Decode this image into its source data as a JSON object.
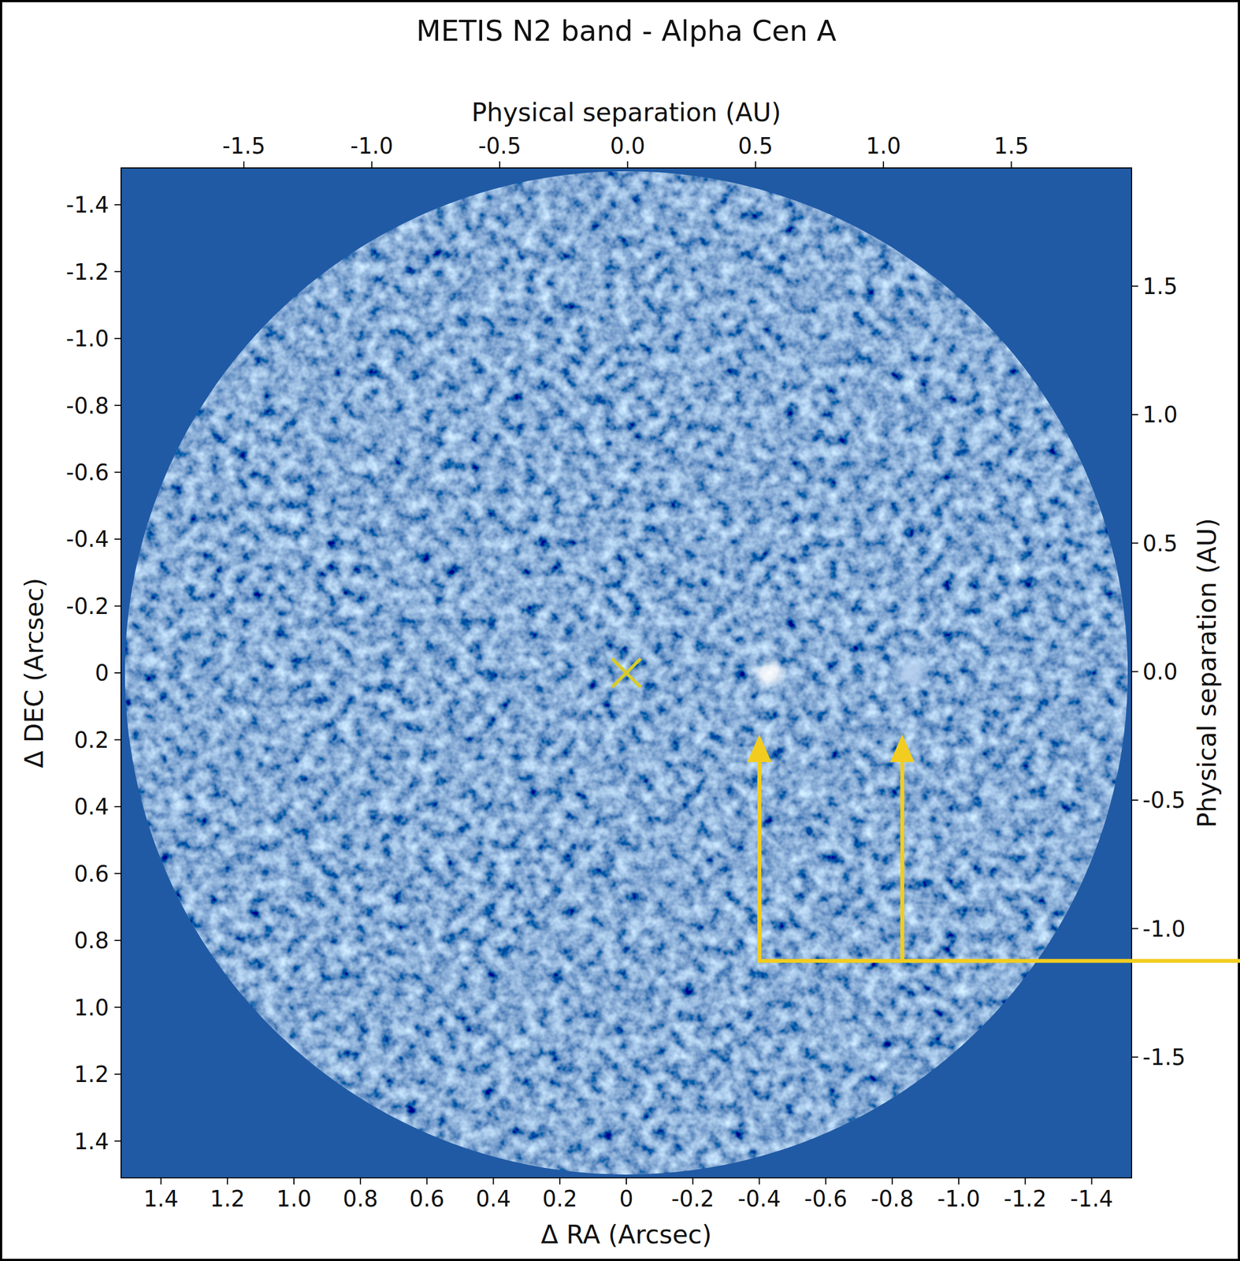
{
  "chart_data": {
    "type": "scatter",
    "title": "METIS N2 band - Alpha Cen A",
    "x_label": "Δ RA (Arcsec)",
    "y_label": "Δ DEC (Arcsec)",
    "x2_label": "Physical separation (AU)",
    "y2_label": "Physical separation (AU)",
    "xlim": [
      1.52,
      -1.52
    ],
    "xticks": [
      1.4,
      1.2,
      {
        "value": 1,
        "label": "1.0"
      },
      0.8,
      0.6,
      0.4,
      0.2,
      0,
      -0.2,
      -0.4,
      -0.6,
      -0.8,
      {
        "value": -1,
        "label": "-1.0"
      },
      -1.2,
      -1.4
    ],
    "ylim": [
      1.51,
      -1.51
    ],
    "yticks": [
      -1.4,
      -1.2,
      {
        "value": -1,
        "label": "-1.0"
      },
      -0.8,
      -0.6,
      -0.4,
      -0.2,
      0,
      0.2,
      0.4,
      0.6,
      0.8,
      {
        "value": 1,
        "label": "1.0"
      },
      1.2,
      1.4
    ],
    "x2lim": [
      -1.98,
      1.97
    ],
    "x2ticks": [
      -1.5,
      {
        "value": -1,
        "label": "-1.0"
      },
      -0.5,
      {
        "value": 0,
        "label": "0.0"
      },
      0.5,
      {
        "value": 1,
        "label": "1.0"
      },
      1.5
    ],
    "y2lim": [
      -1.97,
      1.96
    ],
    "y2ticks": [
      -1.5,
      {
        "value": -1,
        "label": "-1.0"
      },
      -0.5,
      {
        "value": 0,
        "label": "0.0"
      },
      0.5,
      {
        "value": 1,
        "label": "1.0"
      },
      1.5
    ],
    "grid": false,
    "series": [
      {
        "x": [
          0
        ],
        "values": [
          0
        ],
        "color": "#d8cc2a",
        "marker": "x"
      },
      {
        "x": [
          -0.43
        ],
        "values": [
          0
        ],
        "color": "#ffffff",
        "marker": "circle"
      },
      {
        "x": [
          -0.86
        ],
        "values": [
          0
        ],
        "color": "#b9d2f0",
        "marker": "circle"
      }
    ]
  }
}
